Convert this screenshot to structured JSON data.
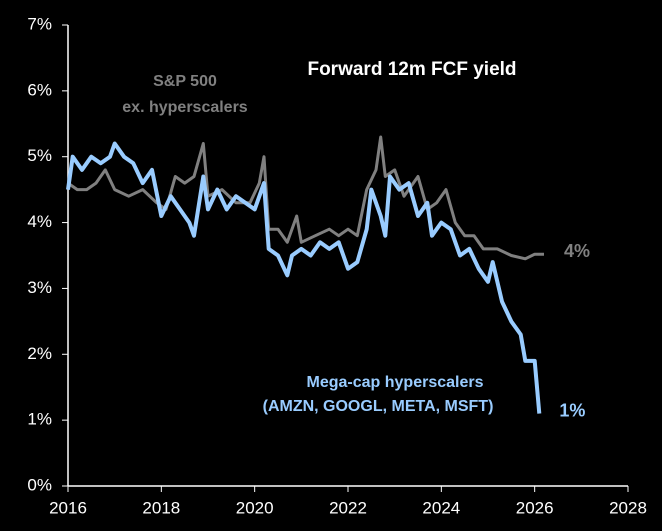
{
  "chart_data": {
    "type": "line",
    "title": "Forward 12m FCF yield",
    "xlim": [
      2016,
      2028
    ],
    "xticks": [
      2016,
      2018,
      2020,
      2022,
      2024,
      2026,
      2028
    ],
    "ylim": [
      0,
      7
    ],
    "yticks": [
      {
        "value": 0,
        "label": "0%"
      },
      {
        "value": 1,
        "label": "1%"
      },
      {
        "value": 2,
        "label": "2%"
      },
      {
        "value": 3,
        "label": "3%"
      },
      {
        "value": 4,
        "label": "4%"
      },
      {
        "value": 5,
        "label": "5%"
      },
      {
        "value": 6,
        "label": "6%"
      },
      {
        "value": 7,
        "label": "7%"
      }
    ],
    "grid": false,
    "series": [
      {
        "name": [
          "S&P 500",
          "ex. hyperscalers"
        ],
        "color": "#808080",
        "x": [
          2016.0,
          2016.2,
          2016.4,
          2016.6,
          2016.8,
          2017.0,
          2017.3,
          2017.6,
          2017.9,
          2018.1,
          2018.3,
          2018.5,
          2018.7,
          2018.9,
          2019.0,
          2019.3,
          2019.6,
          2019.9,
          2020.1,
          2020.2,
          2020.3,
          2020.5,
          2020.7,
          2020.9,
          2021.0,
          2021.3,
          2021.6,
          2021.8,
          2022.0,
          2022.2,
          2022.4,
          2022.6,
          2022.7,
          2022.8,
          2023.0,
          2023.2,
          2023.5,
          2023.7,
          2023.9,
          2024.1,
          2024.3,
          2024.5,
          2024.7,
          2024.9,
          2025.2,
          2025.5,
          2025.8,
          2026.0,
          2026.2
        ],
        "values": [
          4.6,
          4.5,
          4.5,
          4.6,
          4.8,
          4.5,
          4.4,
          4.5,
          4.3,
          4.2,
          4.7,
          4.6,
          4.7,
          5.2,
          4.4,
          4.5,
          4.3,
          4.3,
          4.6,
          5.0,
          3.9,
          3.9,
          3.7,
          4.1,
          3.7,
          3.8,
          3.9,
          3.8,
          3.9,
          3.8,
          4.5,
          4.8,
          5.3,
          4.7,
          4.8,
          4.4,
          4.7,
          4.2,
          4.3,
          4.5,
          4.0,
          3.8,
          3.8,
          3.6,
          3.6,
          3.5,
          3.45,
          3.52,
          3.52
        ],
        "value_labels": [
          null,
          null,
          null,
          null,
          null,
          null,
          null,
          null,
          null,
          null,
          null,
          null,
          null,
          null,
          null,
          null,
          null,
          null,
          null,
          null,
          null,
          null,
          null,
          null,
          null,
          null,
          null,
          null,
          null,
          null,
          null,
          null,
          null,
          null,
          null,
          null,
          null,
          null,
          null,
          null,
          null,
          null,
          null,
          null,
          null,
          null,
          null,
          null,
          "4%"
        ]
      },
      {
        "name": [
          "Mega-cap hyperscalers",
          "(AMZN, GOOGL, META, MSFT)"
        ],
        "color": "#99ccff",
        "x": [
          2016.0,
          2016.1,
          2016.3,
          2016.5,
          2016.7,
          2016.9,
          2017.0,
          2017.2,
          2017.4,
          2017.6,
          2017.8,
          2018.0,
          2018.2,
          2018.4,
          2018.6,
          2018.7,
          2018.9,
          2019.0,
          2019.2,
          2019.4,
          2019.6,
          2019.8,
          2020.0,
          2020.2,
          2020.3,
          2020.5,
          2020.7,
          2020.8,
          2021.0,
          2021.2,
          2021.4,
          2021.6,
          2021.8,
          2022.0,
          2022.2,
          2022.4,
          2022.5,
          2022.7,
          2022.8,
          2022.9,
          2023.1,
          2023.3,
          2023.5,
          2023.7,
          2023.8,
          2024.0,
          2024.2,
          2024.4,
          2024.6,
          2024.8,
          2025.0,
          2025.1,
          2025.3,
          2025.5,
          2025.7,
          2025.8,
          2026.0,
          2026.1
        ],
        "values": [
          4.5,
          5.0,
          4.8,
          5.0,
          4.9,
          5.0,
          5.2,
          5.0,
          4.9,
          4.6,
          4.8,
          4.1,
          4.4,
          4.2,
          4.0,
          3.8,
          4.7,
          4.2,
          4.5,
          4.2,
          4.4,
          4.3,
          4.2,
          4.6,
          3.6,
          3.5,
          3.2,
          3.5,
          3.6,
          3.5,
          3.7,
          3.6,
          3.7,
          3.3,
          3.4,
          3.9,
          4.5,
          4.1,
          3.8,
          4.7,
          4.5,
          4.6,
          4.1,
          4.3,
          3.8,
          4.0,
          3.9,
          3.5,
          3.6,
          3.3,
          3.1,
          3.4,
          2.8,
          2.5,
          2.3,
          1.9,
          1.9,
          1.1
        ],
        "value_labels": [
          null,
          null,
          null,
          null,
          null,
          null,
          null,
          null,
          null,
          null,
          null,
          null,
          null,
          null,
          null,
          null,
          null,
          null,
          null,
          null,
          null,
          null,
          null,
          null,
          null,
          null,
          null,
          null,
          null,
          null,
          null,
          null,
          null,
          null,
          null,
          null,
          null,
          null,
          null,
          null,
          null,
          null,
          null,
          null,
          null,
          null,
          null,
          null,
          null,
          null,
          null,
          null,
          null,
          null,
          null,
          null,
          null,
          "1%"
        ]
      }
    ]
  }
}
